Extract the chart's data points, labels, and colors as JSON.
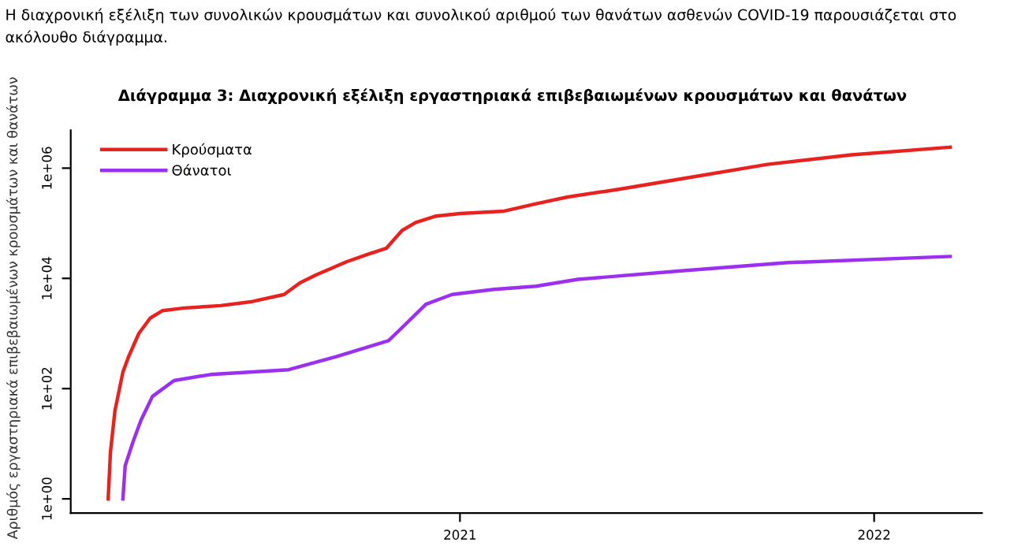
{
  "chart_data": {
    "type": "line",
    "title": "Διάγραμμα 3: Διαχρονική εξέλιξη εργαστηριακά επιβεβαιωμένων κρουσμάτων και θανάτων",
    "ylabel": "Αριθμός εργαστηριακά επιβεβαιωμένων κρουσμάτων και θανάτων",
    "annotations": [
      "Η διαχρονική εξέλιξη των συνολικών κρουσμάτων και συνολικού αριθμού των θανάτων ασθενών COVID-19 παρουσιάζεται στο ακόλουθο διάγραμμα."
    ],
    "log": "y",
    "grid": false,
    "legend": "top left",
    "marker": "none",
    "line_style": "solid",
    "xlim": [
      "2020-01-24",
      "2022-04-06"
    ],
    "xticks": [
      {
        "value": "2021-01-01",
        "label": "2021"
      },
      {
        "value": "2022-01-01",
        "label": "2022"
      }
    ],
    "ylim": [
      0.55,
      4850000
    ],
    "yticks": [
      {
        "value": 1,
        "label": "1e+00"
      },
      {
        "value": 100,
        "label": "1e+02"
      },
      {
        "value": 10000,
        "label": "1e+04"
      },
      {
        "value": 1000000,
        "label": "1e+06"
      }
    ],
    "series": [
      {
        "name": "Κρούσματα",
        "color": "#e8231f",
        "x": [
          "2020-02-26",
          "2020-02-28",
          "2020-03-03",
          "2020-03-10",
          "2020-03-15",
          "2020-03-24",
          "2020-04-03",
          "2020-04-14",
          "2020-05-03",
          "2020-06-04",
          "2020-07-02",
          "2020-07-30",
          "2020-08-13",
          "2020-08-27",
          "2020-09-23",
          "2020-10-12",
          "2020-10-28",
          "2020-11-11",
          "2020-11-23",
          "2020-12-11",
          "2021-01-01",
          "2021-02-09",
          "2021-03-09",
          "2021-04-06",
          "2021-05-22",
          "2021-07-17",
          "2021-09-29",
          "2021-12-12",
          "2022-03-09"
        ],
        "values": [
          1,
          7,
          40,
          200,
          380,
          1000,
          1900,
          2600,
          2900,
          3200,
          3800,
          5100,
          8300,
          11500,
          20000,
          27500,
          35000,
          74000,
          103000,
          135000,
          150000,
          166000,
          225000,
          300000,
          417000,
          650000,
          1170000,
          1740000,
          2400000
        ]
      },
      {
        "name": "Θάνατοι",
        "color": "#9b30f0",
        "x": [
          "2020-03-10",
          "2020-03-12",
          "2020-03-19",
          "2020-03-26",
          "2020-04-05",
          "2020-04-24",
          "2020-05-26",
          "2020-08-03",
          "2020-09-14",
          "2020-10-30",
          "2020-11-13",
          "2020-12-02",
          "2020-12-25",
          "2021-01-31",
          "2021-03-09",
          "2021-04-15",
          "2021-07-17",
          "2021-10-17",
          "2022-03-09"
        ],
        "values": [
          1,
          4,
          11,
          27,
          72,
          140,
          180,
          220,
          380,
          740,
          1400,
          3400,
          5100,
          6300,
          7200,
          9600,
          13800,
          19300,
          25000
        ]
      }
    ]
  }
}
